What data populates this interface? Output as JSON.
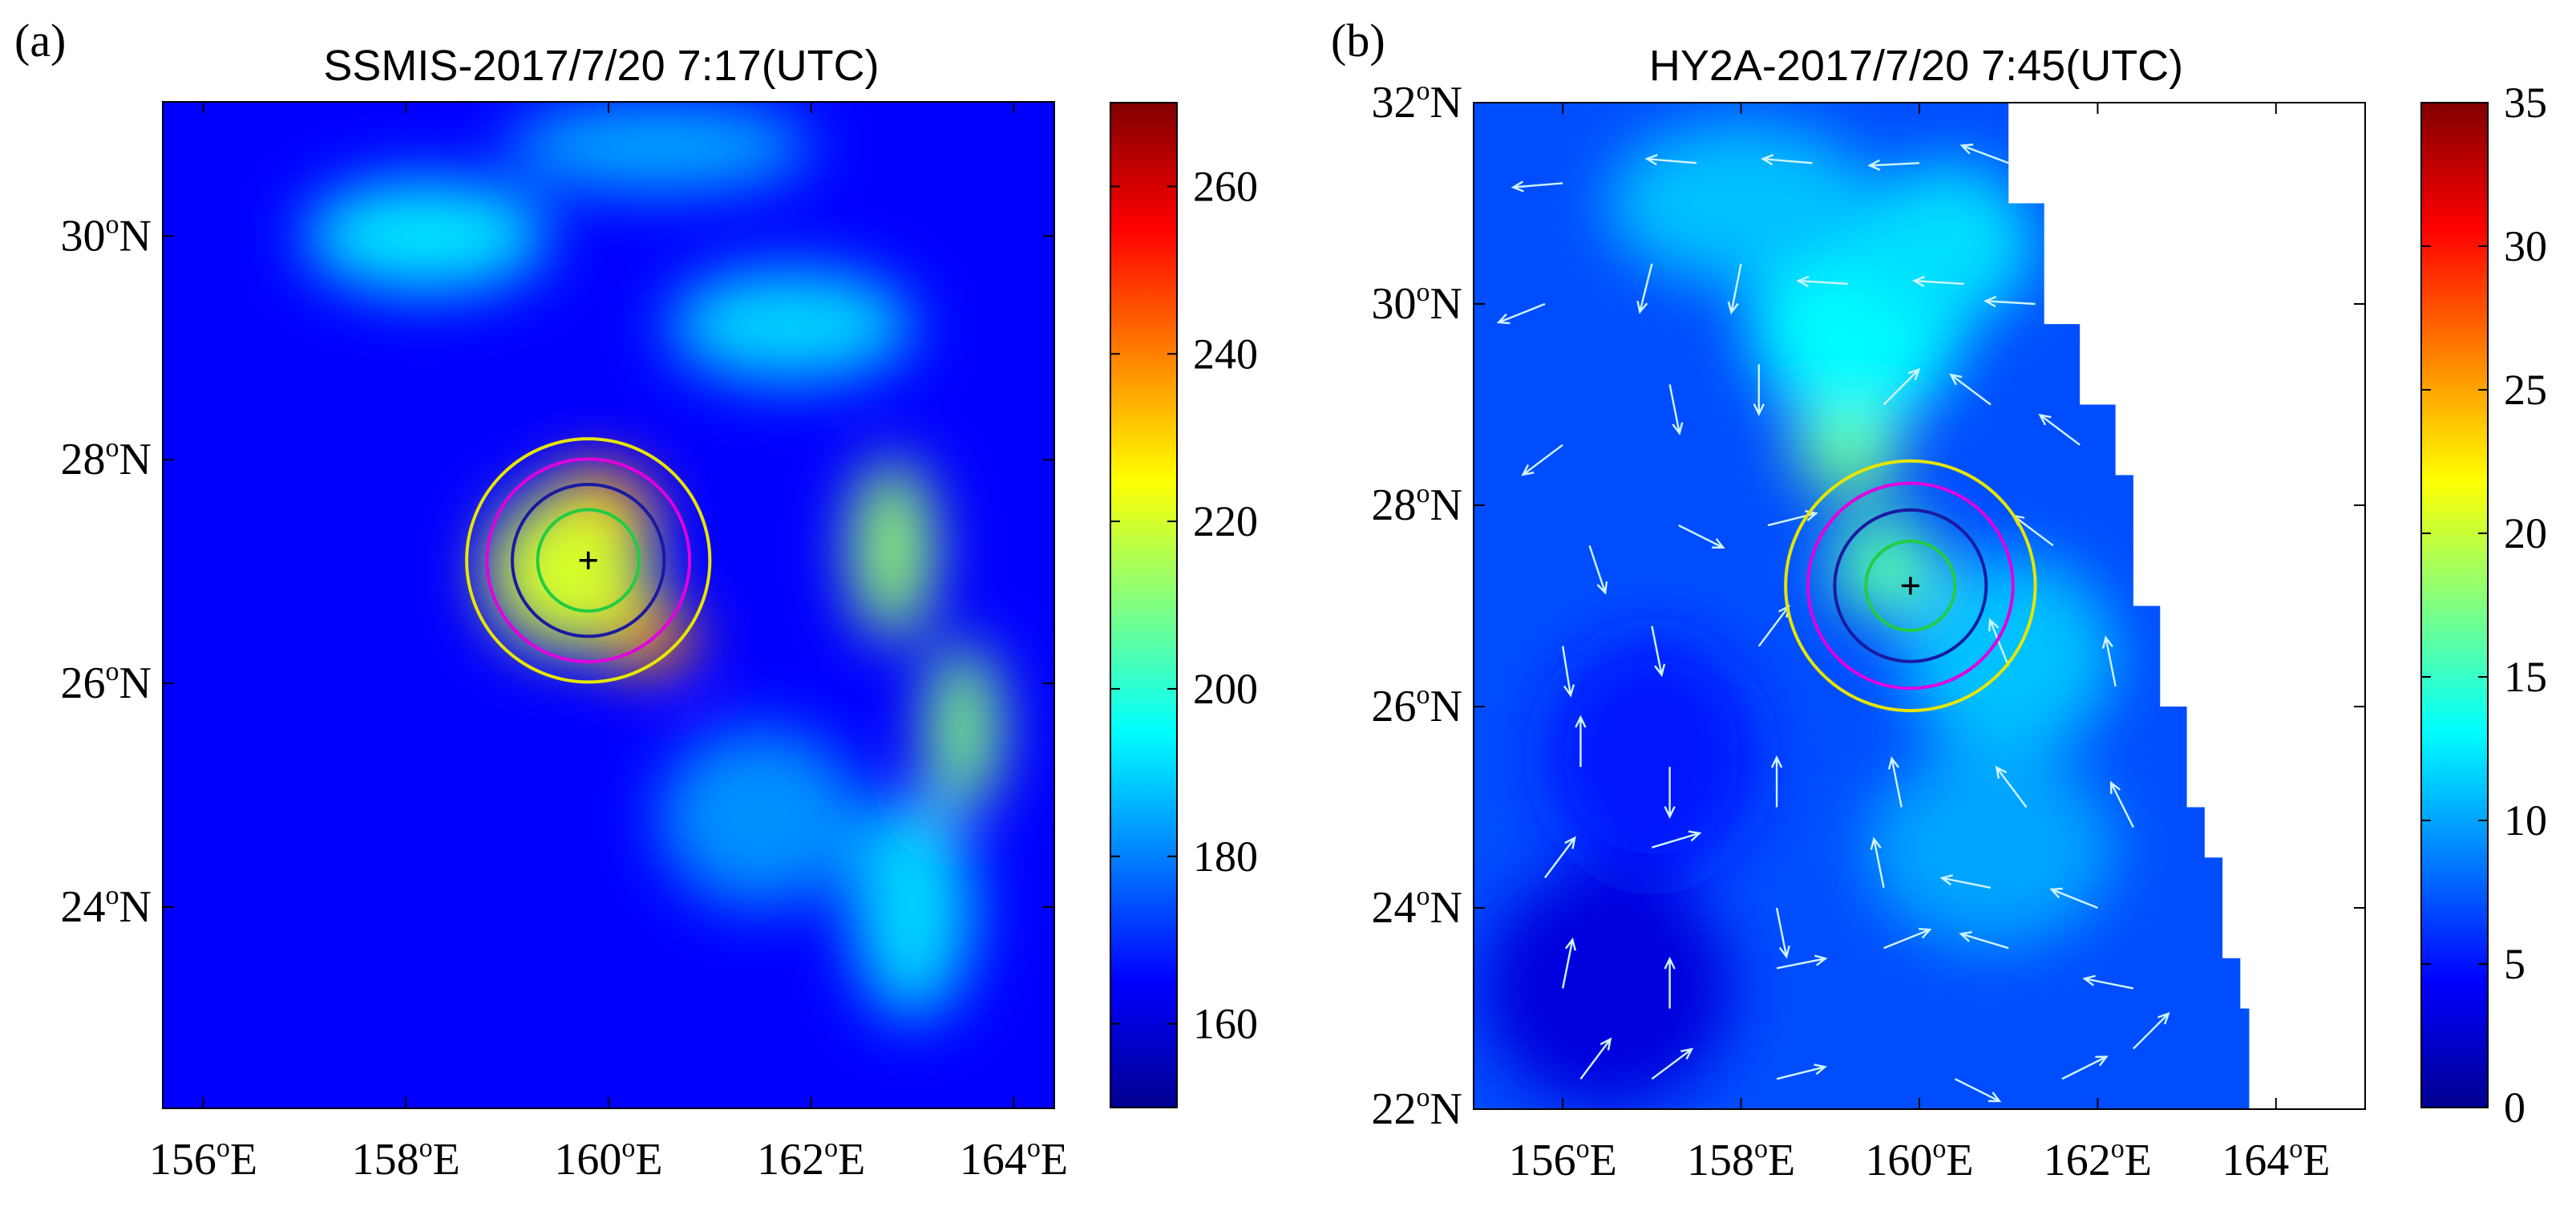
{
  "colors": {
    "colormap": [
      "#00008f",
      "#0000ff",
      "#0080ff",
      "#00ffff",
      "#80ff80",
      "#ffff00",
      "#ff8000",
      "#ff0000",
      "#800000"
    ],
    "circle_yellow": "#e6e600",
    "circle_magenta": "#e000e0",
    "circle_blue": "#1a1aa0",
    "circle_green": "#22cc44",
    "wind_vector": "#d0f4ff"
  },
  "chart_data": [
    {
      "type": "heatmap",
      "panel_label": "(a)",
      "title": "SSMIS-2017/7/20 7:17(UTC)",
      "xlim": [
        155.6,
        164.4
      ],
      "ylim": [
        22.2,
        31.2
      ],
      "x_ticks": [
        156,
        158,
        160,
        162,
        164
      ],
      "x_tick_labels": [
        "156",
        "158",
        "160",
        "162",
        "164"
      ],
      "y_ticks": [
        24,
        26,
        28,
        30
      ],
      "y_tick_labels": [
        "24",
        "26",
        "28",
        "30"
      ],
      "x_unit": "E",
      "y_unit": "N",
      "deg": "o",
      "colorbar": {
        "min": 150,
        "max": 270,
        "ticks": [
          160,
          180,
          200,
          220,
          240,
          260
        ],
        "tick_labels": [
          "160",
          "180",
          "200",
          "220",
          "240",
          "260"
        ]
      },
      "background_value": 165,
      "field_blobs": [
        {
          "lon": 159.9,
          "lat": 27.5,
          "value": 242,
          "rlon": 0.55,
          "rlat": 0.45
        },
        {
          "lon": 160.4,
          "lat": 26.4,
          "value": 238,
          "rlon": 0.45,
          "rlat": 0.3
        },
        {
          "lon": 159.6,
          "lat": 27.0,
          "value": 220,
          "rlon": 0.8,
          "rlat": 0.7
        },
        {
          "lon": 162.8,
          "lat": 27.2,
          "value": 212,
          "rlon": 0.4,
          "rlat": 0.8
        },
        {
          "lon": 163.5,
          "lat": 25.6,
          "value": 210,
          "rlon": 0.35,
          "rlat": 0.75
        },
        {
          "lon": 161.8,
          "lat": 29.2,
          "value": 190,
          "rlon": 1.2,
          "rlat": 0.5
        },
        {
          "lon": 158.2,
          "lat": 30.0,
          "value": 192,
          "rlon": 1.2,
          "rlat": 0.5
        },
        {
          "lon": 163.0,
          "lat": 24.0,
          "value": 190,
          "rlon": 0.6,
          "rlat": 1.0
        },
        {
          "lon": 161.5,
          "lat": 24.8,
          "value": 182,
          "rlon": 1.0,
          "rlat": 0.8
        },
        {
          "lon": 160.5,
          "lat": 30.8,
          "value": 185,
          "rlon": 1.5,
          "rlat": 0.4
        }
      ],
      "center": {
        "lon": 159.8,
        "lat": 27.1
      },
      "circles_deg": [
        {
          "color": "circle_yellow",
          "r": 1.2
        },
        {
          "color": "circle_magenta",
          "r": 1.0
        },
        {
          "color": "circle_blue",
          "r": 0.75
        },
        {
          "color": "circle_green",
          "r": 0.5
        }
      ]
    },
    {
      "type": "heatmap",
      "panel_label": "(b)",
      "title": "HY2A-2017/7/20 7:45(UTC)",
      "xlim": [
        155.0,
        165.0
      ],
      "ylim": [
        22.0,
        32.0
      ],
      "x_ticks": [
        156,
        158,
        160,
        162,
        164
      ],
      "x_tick_labels": [
        "156",
        "158",
        "160",
        "162",
        "164"
      ],
      "y_ticks": [
        22,
        24,
        26,
        28,
        30,
        32
      ],
      "y_tick_labels": [
        "22",
        "24",
        "26",
        "28",
        "30",
        "32"
      ],
      "x_unit": "E",
      "y_unit": "N",
      "deg": "o",
      "colorbar": {
        "min": 0,
        "max": 35,
        "ticks": [
          0,
          5,
          10,
          15,
          20,
          25,
          30,
          35
        ],
        "tick_labels": [
          "0",
          "5",
          "10",
          "15",
          "20",
          "25",
          "30",
          "35"
        ]
      },
      "background_value": 7,
      "swath_east_edge": [
        {
          "lat": 32.0,
          "lon": 161.0
        },
        {
          "lat": 31.0,
          "lon": 161.4
        },
        {
          "lat": 29.8,
          "lon": 161.8
        },
        {
          "lat": 29.0,
          "lon": 162.2
        },
        {
          "lat": 28.3,
          "lon": 162.4
        },
        {
          "lat": 27.0,
          "lon": 162.7
        },
        {
          "lat": 26.0,
          "lon": 163.0
        },
        {
          "lat": 25.0,
          "lon": 163.2
        },
        {
          "lat": 24.5,
          "lon": 163.4
        },
        {
          "lat": 23.5,
          "lon": 163.6
        },
        {
          "lat": 23.0,
          "lon": 163.7
        },
        {
          "lat": 22.0,
          "lon": 163.5
        }
      ],
      "field_blobs": [
        {
          "lon": 159.2,
          "lat": 28.6,
          "value": 17,
          "rlon": 0.6,
          "rlat": 0.5
        },
        {
          "lon": 159.6,
          "lat": 27.4,
          "value": 16,
          "rlon": 0.6,
          "rlat": 0.5
        },
        {
          "lon": 159.3,
          "lat": 29.8,
          "value": 13,
          "rlon": 1.2,
          "rlat": 1.0
        },
        {
          "lon": 160.3,
          "lat": 30.6,
          "value": 12,
          "rlon": 1.0,
          "rlat": 0.8
        },
        {
          "lon": 158.0,
          "lat": 31.0,
          "value": 11,
          "rlon": 1.5,
          "rlat": 0.8
        },
        {
          "lon": 161.0,
          "lat": 26.5,
          "value": 11,
          "rlon": 1.2,
          "rlat": 1.0
        },
        {
          "lon": 160.8,
          "lat": 24.6,
          "value": 10,
          "rlon": 1.4,
          "rlat": 1.0
        },
        {
          "lon": 156.5,
          "lat": 23.2,
          "value": 3,
          "rlon": 1.4,
          "rlat": 1.2
        },
        {
          "lon": 157.0,
          "lat": 25.5,
          "value": 5,
          "rlon": 1.2,
          "rlat": 1.2
        }
      ],
      "wind_vectors": [
        {
          "lon": 156.0,
          "lat": 31.2,
          "u": -6,
          "v": -0.5
        },
        {
          "lon": 157.5,
          "lat": 31.4,
          "u": -6,
          "v": 0.5
        },
        {
          "lon": 158.8,
          "lat": 31.4,
          "u": -6,
          "v": 0.5
        },
        {
          "lon": 160.0,
          "lat": 31.4,
          "u": -6,
          "v": -0.3
        },
        {
          "lon": 161.0,
          "lat": 31.4,
          "u": -4,
          "v": 1.5
        },
        {
          "lon": 155.8,
          "lat": 30.0,
          "u": -5,
          "v": -2
        },
        {
          "lon": 157.0,
          "lat": 30.4,
          "u": -1,
          "v": -4
        },
        {
          "lon": 158.0,
          "lat": 30.4,
          "u": -1,
          "v": -5
        },
        {
          "lon": 159.2,
          "lat": 30.2,
          "u": -5,
          "v": 0.3
        },
        {
          "lon": 160.5,
          "lat": 30.2,
          "u": -5,
          "v": 0.3
        },
        {
          "lon": 161.3,
          "lat": 30.0,
          "u": -5,
          "v": 0.3
        },
        {
          "lon": 156.0,
          "lat": 28.6,
          "u": -4,
          "v": -3
        },
        {
          "lon": 157.2,
          "lat": 29.2,
          "u": 1,
          "v": -5
        },
        {
          "lon": 158.2,
          "lat": 29.4,
          "u": 0,
          "v": -5
        },
        {
          "lon": 159.6,
          "lat": 29.0,
          "u": 3,
          "v": 3
        },
        {
          "lon": 160.8,
          "lat": 29.0,
          "u": -4,
          "v": 3
        },
        {
          "lon": 161.8,
          "lat": 28.6,
          "u": -4,
          "v": 3
        },
        {
          "lon": 156.3,
          "lat": 27.6,
          "u": 1.5,
          "v": -4.5
        },
        {
          "lon": 157.3,
          "lat": 27.8,
          "u": 4,
          "v": -2
        },
        {
          "lon": 158.3,
          "lat": 27.8,
          "u": 4,
          "v": 1
        },
        {
          "lon": 161.5,
          "lat": 27.6,
          "u": -4,
          "v": 3
        },
        {
          "lon": 156.0,
          "lat": 26.6,
          "u": 0.8,
          "v": -5
        },
        {
          "lon": 157.0,
          "lat": 26.8,
          "u": 1,
          "v": -5
        },
        {
          "lon": 158.2,
          "lat": 26.6,
          "u": 3,
          "v": 4
        },
        {
          "lon": 161.0,
          "lat": 26.4,
          "u": -2,
          "v": 5
        },
        {
          "lon": 162.2,
          "lat": 26.2,
          "u": -1,
          "v": 5
        },
        {
          "lon": 156.2,
          "lat": 25.4,
          "u": 0,
          "v": 5
        },
        {
          "lon": 157.2,
          "lat": 25.4,
          "u": 0,
          "v": -5
        },
        {
          "lon": 158.4,
          "lat": 25.0,
          "u": 0,
          "v": 5
        },
        {
          "lon": 159.8,
          "lat": 25.0,
          "u": -1,
          "v": 5
        },
        {
          "lon": 161.2,
          "lat": 25.0,
          "u": -3,
          "v": 4
        },
        {
          "lon": 162.4,
          "lat": 24.8,
          "u": -2,
          "v": 4
        },
        {
          "lon": 155.8,
          "lat": 24.3,
          "u": 3,
          "v": 4
        },
        {
          "lon": 157.0,
          "lat": 24.6,
          "u": 5,
          "v": 1.5
        },
        {
          "lon": 158.4,
          "lat": 24.0,
          "u": 1,
          "v": -5
        },
        {
          "lon": 159.6,
          "lat": 24.2,
          "u": -1,
          "v": 5
        },
        {
          "lon": 160.8,
          "lat": 24.2,
          "u": -5,
          "v": 1
        },
        {
          "lon": 162.0,
          "lat": 24.0,
          "u": -5,
          "v": 2
        },
        {
          "lon": 156.0,
          "lat": 23.2,
          "u": 1,
          "v": 5
        },
        {
          "lon": 157.2,
          "lat": 23.0,
          "u": 0,
          "v": 5
        },
        {
          "lon": 158.4,
          "lat": 23.4,
          "u": 5,
          "v": 1
        },
        {
          "lon": 159.6,
          "lat": 23.6,
          "u": 5,
          "v": 2
        },
        {
          "lon": 161.0,
          "lat": 23.6,
          "u": -5,
          "v": 1.5
        },
        {
          "lon": 162.4,
          "lat": 23.2,
          "u": -5,
          "v": 1
        },
        {
          "lon": 156.2,
          "lat": 22.3,
          "u": 3,
          "v": 4
        },
        {
          "lon": 157.0,
          "lat": 22.3,
          "u": 4,
          "v": 3
        },
        {
          "lon": 158.4,
          "lat": 22.3,
          "u": 4,
          "v": 1
        },
        {
          "lon": 160.4,
          "lat": 22.3,
          "u": 4,
          "v": -2
        },
        {
          "lon": 161.6,
          "lat": 22.3,
          "u": 4,
          "v": 2
        },
        {
          "lon": 162.4,
          "lat": 22.6,
          "u": 3,
          "v": 3
        }
      ],
      "center": {
        "lon": 159.9,
        "lat": 27.2
      },
      "circles_deg": [
        {
          "color": "circle_yellow",
          "r": 1.4
        },
        {
          "color": "circle_magenta",
          "r": 1.15
        },
        {
          "color": "circle_blue",
          "r": 0.85
        },
        {
          "color": "circle_green",
          "r": 0.5
        }
      ]
    }
  ]
}
